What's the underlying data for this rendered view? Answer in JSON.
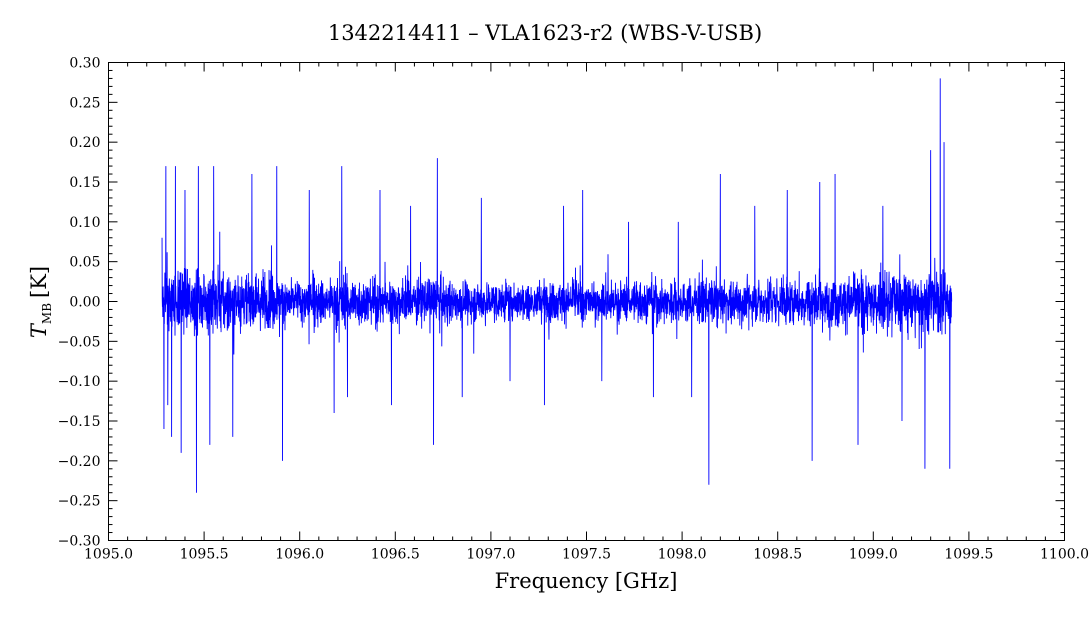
{
  "chart_data": {
    "type": "line",
    "title": "1342214411 – VLA1623-r2 (WBS-V-USB)",
    "xlabel": "Frequency [GHz]",
    "ylabel_main": "T",
    "ylabel_sub": "MB",
    "ylabel_unit": "[K]",
    "xlim": [
      1095.0,
      1100.0
    ],
    "ylim": [
      -0.3,
      0.3
    ],
    "x_ticks": [
      1095.0,
      1095.5,
      1096.0,
      1096.5,
      1097.0,
      1097.5,
      1098.0,
      1098.5,
      1099.0,
      1099.5,
      1100.0
    ],
    "x_tick_labels": [
      "1095.0",
      "1095.5",
      "1096.0",
      "1096.5",
      "1097.0",
      "1097.5",
      "1098.0",
      "1098.5",
      "1099.0",
      "1099.5",
      "1100.0"
    ],
    "y_ticks": [
      -0.3,
      -0.25,
      -0.2,
      -0.15,
      -0.1,
      -0.05,
      0.0,
      0.05,
      0.1,
      0.15,
      0.2,
      0.25,
      0.3
    ],
    "y_tick_labels": [
      "−0.30",
      "−0.25",
      "−0.20",
      "−0.15",
      "−0.10",
      "−0.05",
      "0.00",
      "0.05",
      "0.10",
      "0.15",
      "0.20",
      "0.25",
      "0.30"
    ],
    "grid": false,
    "series_color": "#0000ff",
    "series": [
      {
        "x_range": [
          1095.28,
          1099.41
        ],
        "points": [
          [
            1095.28,
            0.08
          ],
          [
            1095.29,
            -0.16
          ],
          [
            1095.3,
            0.17
          ],
          [
            1095.31,
            -0.13
          ],
          [
            1095.33,
            -0.17
          ],
          [
            1095.35,
            0.17
          ],
          [
            1095.38,
            -0.19
          ],
          [
            1095.4,
            0.14
          ],
          [
            1095.46,
            -0.24
          ],
          [
            1095.47,
            0.17
          ],
          [
            1095.53,
            -0.18
          ],
          [
            1095.55,
            0.17
          ],
          [
            1095.65,
            -0.17
          ],
          [
            1095.75,
            0.16
          ],
          [
            1095.88,
            0.17
          ],
          [
            1095.91,
            -0.2
          ],
          [
            1096.05,
            0.14
          ],
          [
            1096.18,
            -0.14
          ],
          [
            1096.22,
            0.17
          ],
          [
            1096.25,
            -0.12
          ],
          [
            1096.42,
            0.14
          ],
          [
            1096.48,
            -0.13
          ],
          [
            1096.58,
            0.12
          ],
          [
            1096.7,
            -0.18
          ],
          [
            1096.72,
            0.18
          ],
          [
            1096.85,
            -0.12
          ],
          [
            1096.95,
            0.13
          ],
          [
            1097.1,
            -0.1
          ],
          [
            1097.28,
            -0.13
          ],
          [
            1097.38,
            0.12
          ],
          [
            1097.48,
            0.14
          ],
          [
            1097.58,
            -0.1
          ],
          [
            1097.72,
            0.1
          ],
          [
            1097.85,
            -0.12
          ],
          [
            1097.98,
            0.1
          ],
          [
            1098.05,
            -0.12
          ],
          [
            1098.14,
            -0.23
          ],
          [
            1098.2,
            0.16
          ],
          [
            1098.38,
            0.12
          ],
          [
            1098.55,
            0.14
          ],
          [
            1098.68,
            -0.2
          ],
          [
            1098.72,
            0.15
          ],
          [
            1098.8,
            0.16
          ],
          [
            1098.92,
            -0.18
          ],
          [
            1099.05,
            0.12
          ],
          [
            1099.15,
            -0.15
          ],
          [
            1099.27,
            -0.21
          ],
          [
            1099.3,
            0.19
          ],
          [
            1099.35,
            0.28
          ],
          [
            1099.37,
            0.2
          ],
          [
            1099.4,
            -0.21
          ],
          [
            1099.41,
            0.0
          ]
        ]
      }
    ]
  }
}
